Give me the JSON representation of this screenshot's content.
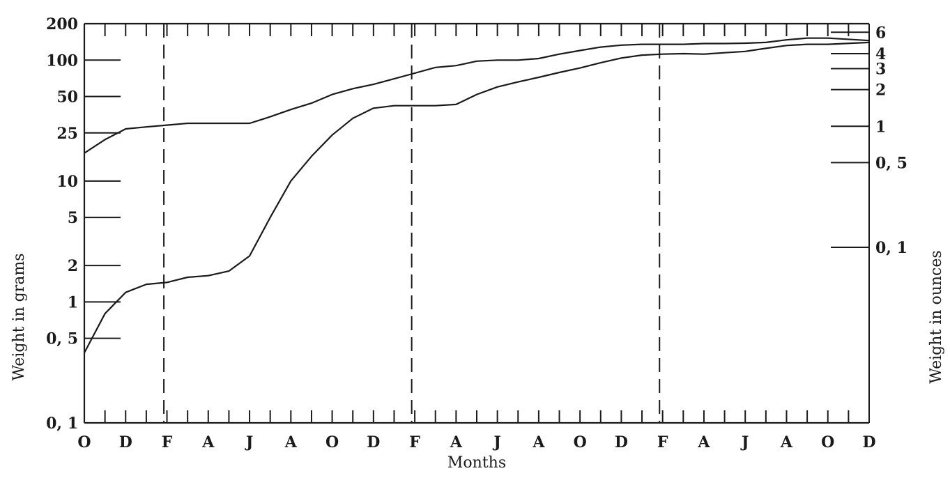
{
  "chart_data": {
    "type": "line",
    "title": "",
    "xlabel": "Months",
    "ylabel": "Weight in grams",
    "ylabel_right": "Weight in ounces",
    "y_scale": "log",
    "ylim": [
      0.1,
      200
    ],
    "grid": false,
    "x_month_labels": [
      "O",
      "D",
      "F",
      "A",
      "J",
      "A",
      "O",
      "D",
      "F",
      "A",
      "J",
      "A",
      "O",
      "D",
      "F",
      "A",
      "J",
      "A",
      "O",
      "D"
    ],
    "y_ticks_left": [
      {
        "value": 200,
        "label": "200"
      },
      {
        "value": 100,
        "label": "100"
      },
      {
        "value": 50,
        "label": "50"
      },
      {
        "value": 25,
        "label": "25"
      },
      {
        "value": 10,
        "label": "10"
      },
      {
        "value": 5,
        "label": "5"
      },
      {
        "value": 2,
        "label": "2"
      },
      {
        "value": 1,
        "label": "1"
      },
      {
        "value": 0.5,
        "label": "0, 5"
      },
      {
        "value": 0.1,
        "label": "0, 1"
      }
    ],
    "y_ticks_right": [
      {
        "value": 170,
        "label": "6"
      },
      {
        "value": 113,
        "label": "4"
      },
      {
        "value": 85,
        "label": "3"
      },
      {
        "value": 57,
        "label": "2"
      },
      {
        "value": 28.35,
        "label": "1"
      },
      {
        "value": 14.2,
        "label": "0, 5"
      },
      {
        "value": 2.83,
        "label": "0, 1"
      }
    ],
    "year_dividers_month_index": [
      4,
      16,
      28
    ],
    "series": [
      {
        "month_index": [
          0,
          1,
          2,
          3,
          4,
          5,
          6,
          7,
          8,
          9,
          10,
          11,
          12,
          13,
          14,
          15,
          16,
          17,
          18,
          19,
          20,
          21,
          22,
          23,
          24,
          25,
          26,
          27,
          28,
          29,
          30,
          31,
          32,
          33,
          34,
          35,
          36,
          38
        ],
        "values": [
          17,
          22,
          27,
          28,
          29,
          30,
          30,
          30,
          30,
          34,
          39,
          44,
          52,
          58,
          63,
          70,
          78,
          87,
          90,
          98,
          100,
          100,
          103,
          112,
          120,
          128,
          133,
          135,
          135,
          135,
          137,
          137,
          138,
          140,
          147,
          152,
          152,
          145
        ]
      },
      {
        "month_index": [
          0,
          1,
          2,
          3,
          4,
          5,
          6,
          7,
          8,
          9,
          10,
          11,
          12,
          13,
          14,
          15,
          16,
          17,
          18,
          19,
          20,
          21,
          22,
          23,
          24,
          25,
          26,
          27,
          28,
          29,
          30,
          31,
          32,
          33,
          34,
          35,
          36,
          38
        ],
        "values": [
          0.38,
          0.8,
          1.2,
          1.4,
          1.45,
          1.6,
          1.65,
          1.8,
          2.4,
          5.0,
          10.0,
          16.0,
          24.0,
          33.0,
          40.0,
          42.0,
          42.0,
          42.0,
          43.0,
          52.0,
          60.0,
          66.0,
          72.0,
          79.0,
          86.0,
          95.0,
          104.0,
          110.0,
          112.0,
          113.0,
          112.0,
          115.0,
          118.0,
          125.0,
          132.0,
          135.0,
          135.0,
          140.0
        ]
      }
    ]
  }
}
